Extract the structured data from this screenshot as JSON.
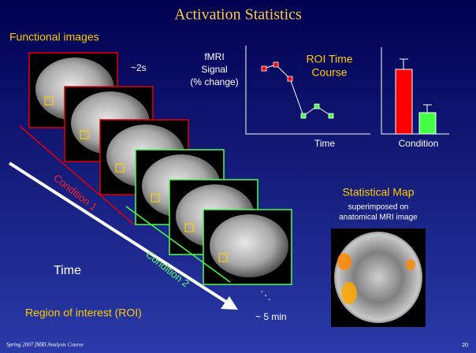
{
  "header": {
    "title": "Activation Statistics"
  },
  "labels": {
    "functional_images": "Functional images",
    "tr": "~2s",
    "signal": [
      "fMRI",
      "Signal",
      "(% change)"
    ],
    "roi_title": [
      "ROI Time",
      "Course"
    ],
    "roi_x": "Time",
    "bar_x": "Condition",
    "condition_1": "Condition 1",
    "condition_2": "Condition 2",
    "time": "Time",
    "roi": "Region of interest (ROI)",
    "dots": "⋱",
    "duration": "~ 5 min",
    "map_title": "Statistical Map",
    "map_sub": [
      "superimposed on",
      "anatomical MRI image"
    ]
  },
  "footer": {
    "course": "Spring 2007 fMRI Analysis Course",
    "page": "20"
  }
}
